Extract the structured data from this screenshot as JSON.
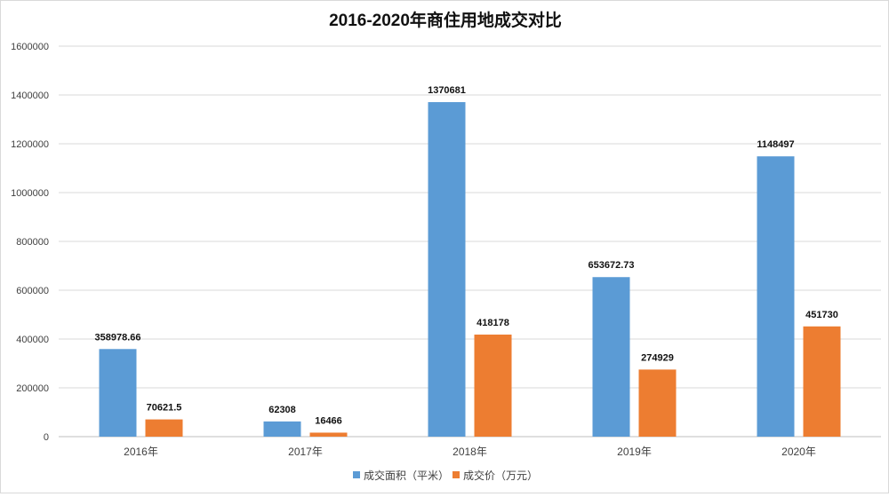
{
  "chart_data": {
    "type": "bar",
    "title": "2016-2020年商住用地成交对比",
    "xlabel": "",
    "ylabel": "",
    "categories": [
      "2016年",
      "2017年",
      "2018年",
      "2019年",
      "2020年"
    ],
    "series": [
      {
        "name": "成交面积（平米）",
        "color": "#5B9BD5",
        "values": [
          358978.66,
          62308,
          1370681,
          653672.73,
          1148497
        ],
        "labels": [
          "358978.66",
          "62308",
          "1370681",
          "653672.73",
          "1148497"
        ]
      },
      {
        "name": "成交价（万元）",
        "color": "#ED7D31",
        "values": [
          70621.5,
          16466,
          418178,
          274929,
          451730
        ],
        "labels": [
          "70621.5",
          "16466",
          "418178",
          "274929",
          "451730"
        ]
      }
    ],
    "ylim": [
      0,
      1600000
    ],
    "yticks": [
      0,
      200000,
      400000,
      600000,
      800000,
      1000000,
      1200000,
      1400000,
      1600000
    ],
    "grid": true,
    "legend": "bottom-center"
  }
}
